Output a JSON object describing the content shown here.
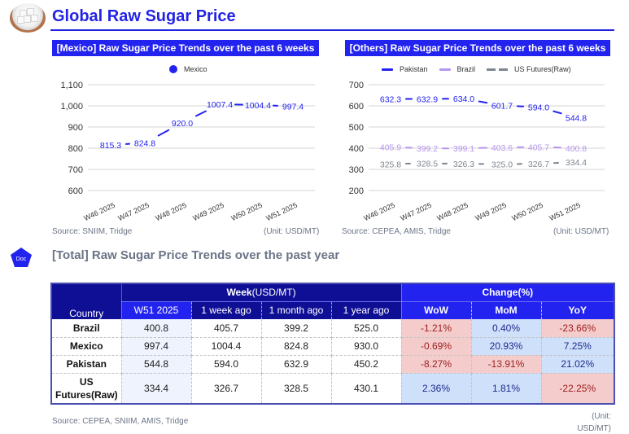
{
  "header": {
    "title": "Global Raw Sugar Price",
    "logo_icon": "sugar-bowl-icon"
  },
  "colors": {
    "accent": "#2323f0",
    "dark_header": "#0f0f96",
    "pakistan": "#2323f0",
    "brazil": "#b695ee",
    "us_futures": "#7f8690",
    "negative_bg": "#f5cccc",
    "positive_bg": "#cfe0fb"
  },
  "mexico_chart": {
    "banner": "[Mexico] Raw Sugar Price Trends over the past 6 weeks",
    "source": "Source: SNIIM, Tridge",
    "unit": "(Unit: USD/MT)"
  },
  "others_chart": {
    "banner": "[Others] Raw Sugar Price Trends over the past 6 weeks",
    "source": "Source: CEPEA, AMIS, Tridge",
    "unit": "(Unit: USD/MT)"
  },
  "chart_data": [
    {
      "type": "line",
      "title": "[Mexico] Raw Sugar Price Trends over the past 6 weeks",
      "xlabel": "",
      "ylabel": "",
      "categories": [
        "W46 2025",
        "W47 2025",
        "W48 2025",
        "W49 2025",
        "W50 2025",
        "W51 2025"
      ],
      "series": [
        {
          "name": "Mexico",
          "values": [
            815.3,
            824.8,
            920.0,
            1007.4,
            1004.4,
            997.4
          ],
          "labels": [
            "815.3",
            "824.8",
            "920.0",
            "1007.4",
            "1004.4",
            "997.4"
          ],
          "color": "#2323f0",
          "style": "solid"
        }
      ],
      "ylim": [
        600,
        1100
      ],
      "yticks": [
        600,
        700,
        800,
        900,
        1000,
        1100
      ],
      "ytick_labels": [
        "600",
        "700",
        "800",
        "900",
        "1,000",
        "1,100"
      ],
      "grid": true,
      "legend": "top-center"
    },
    {
      "type": "line",
      "title": "[Others] Raw Sugar Price Trends over the past 6 weeks",
      "xlabel": "",
      "ylabel": "",
      "categories": [
        "W46 2025",
        "W47 2025",
        "W48 2025",
        "W49 2025",
        "W50 2025",
        "W51 2025"
      ],
      "series": [
        {
          "name": "Pakistan",
          "values": [
            632.3,
            632.9,
            634.0,
            601.7,
            594.0,
            544.8
          ],
          "labels": [
            "632.3",
            "632.9",
            "634.0",
            "601.7",
            "594.0",
            "544.8"
          ],
          "color": "#2323f0",
          "style": "solid"
        },
        {
          "name": "Brazil",
          "values": [
            405.9,
            399.2,
            399.1,
            403.6,
            405.7,
            400.8
          ],
          "labels": [
            "405.9",
            "399.2",
            "399.1",
            "403.6",
            "405.7",
            "400.8"
          ],
          "color": "#b695ee",
          "style": "solid"
        },
        {
          "name": "US Futures(Raw)",
          "values": [
            325.8,
            328.5,
            326.3,
            325.0,
            326.7,
            334.4
          ],
          "labels": [
            "325.8",
            "328.5",
            "326.3",
            "325.0",
            "326.7",
            "334.4"
          ],
          "color": "#7f8690",
          "style": "dashed"
        }
      ],
      "ylim": [
        200,
        700
      ],
      "yticks": [
        200,
        300,
        400,
        500,
        600,
        700
      ],
      "ytick_labels": [
        "200",
        "300",
        "400",
        "500",
        "600",
        "700"
      ],
      "grid": true,
      "legend": "top-center"
    }
  ],
  "section": {
    "badge": "Doc",
    "title": "[Total] Raw Sugar Price Trends over the past year"
  },
  "table": {
    "country_header": "Country",
    "week_group_bold": "Week",
    "week_group_rest": "(USD/MT)",
    "change_group": "Change(%)",
    "week_columns": [
      "W51 2025",
      "1 week ago",
      "1 month ago",
      "1 year ago"
    ],
    "change_columns": [
      "WoW",
      "MoM",
      "YoY"
    ],
    "rows": [
      {
        "country": "Brazil",
        "values": [
          "400.8",
          "405.7",
          "399.2",
          "525.0"
        ],
        "changes": [
          "-1.21%",
          "0.40%",
          "-23.66%"
        ]
      },
      {
        "country": "Mexico",
        "values": [
          "997.4",
          "1004.4",
          "824.8",
          "930.0"
        ],
        "changes": [
          "-0.69%",
          "20.93%",
          "7.25%"
        ]
      },
      {
        "country": "Pakistan",
        "values": [
          "544.8",
          "594.0",
          "632.9",
          "450.2"
        ],
        "changes": [
          "-8.27%",
          "-13.91%",
          "21.02%"
        ]
      },
      {
        "country": "US Futures(Raw)",
        "country_line1": "US",
        "country_line2": "Futures(Raw)",
        "values": [
          "334.4",
          "326.7",
          "328.5",
          "430.1"
        ],
        "changes": [
          "2.36%",
          "1.81%",
          "-22.25%"
        ]
      }
    ],
    "source": "Source: CEPEA, SNIIM, AMIS, Tridge",
    "unit_line1": "(Unit:",
    "unit_line2": "USD/MT)"
  }
}
